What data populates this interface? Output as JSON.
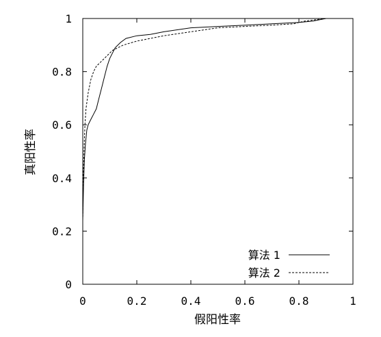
{
  "chart_data": {
    "type": "line",
    "title": "",
    "xlabel": "假阳性率",
    "ylabel": "真阳性率",
    "xlim": [
      0,
      1
    ],
    "ylim": [
      0,
      1
    ],
    "xticks": [
      "0",
      "0.2",
      "0.4",
      "0.6",
      "0.8",
      "1"
    ],
    "yticks": [
      "0",
      "0.2",
      "0.4",
      "0.6",
      "0.8",
      "1"
    ],
    "grid": false,
    "legend_position": "bottom-right",
    "series": [
      {
        "name": "算法 1",
        "style": "solid",
        "x": [
          0,
          0.003,
          0.006,
          0.01,
          0.015,
          0.02,
          0.03,
          0.04,
          0.05,
          0.06,
          0.07,
          0.08,
          0.09,
          0.1,
          0.12,
          0.14,
          0.16,
          0.2,
          0.25,
          0.3,
          0.4,
          0.5,
          0.6,
          0.7,
          0.8,
          0.85,
          0.9,
          1
        ],
        "y": [
          0.24,
          0.38,
          0.47,
          0.53,
          0.58,
          0.6,
          0.62,
          0.64,
          0.66,
          0.7,
          0.74,
          0.78,
          0.82,
          0.85,
          0.89,
          0.91,
          0.925,
          0.935,
          0.94,
          0.95,
          0.965,
          0.97,
          0.975,
          0.98,
          0.985,
          0.99,
          1.0,
          1.0
        ]
      },
      {
        "name": "算法 2",
        "style": "dashed",
        "x": [
          0,
          0.002,
          0.005,
          0.008,
          0.012,
          0.02,
          0.03,
          0.04,
          0.05,
          0.07,
          0.09,
          0.11,
          0.13,
          0.15,
          0.2,
          0.25,
          0.3,
          0.4,
          0.5,
          0.6,
          0.7,
          0.78,
          0.82,
          0.86,
          0.9,
          1
        ],
        "y": [
          0.24,
          0.4,
          0.52,
          0.6,
          0.66,
          0.72,
          0.77,
          0.8,
          0.82,
          0.84,
          0.86,
          0.88,
          0.89,
          0.9,
          0.915,
          0.925,
          0.935,
          0.95,
          0.965,
          0.97,
          0.975,
          0.98,
          0.99,
          0.995,
          1.0,
          1.0
        ]
      }
    ]
  }
}
